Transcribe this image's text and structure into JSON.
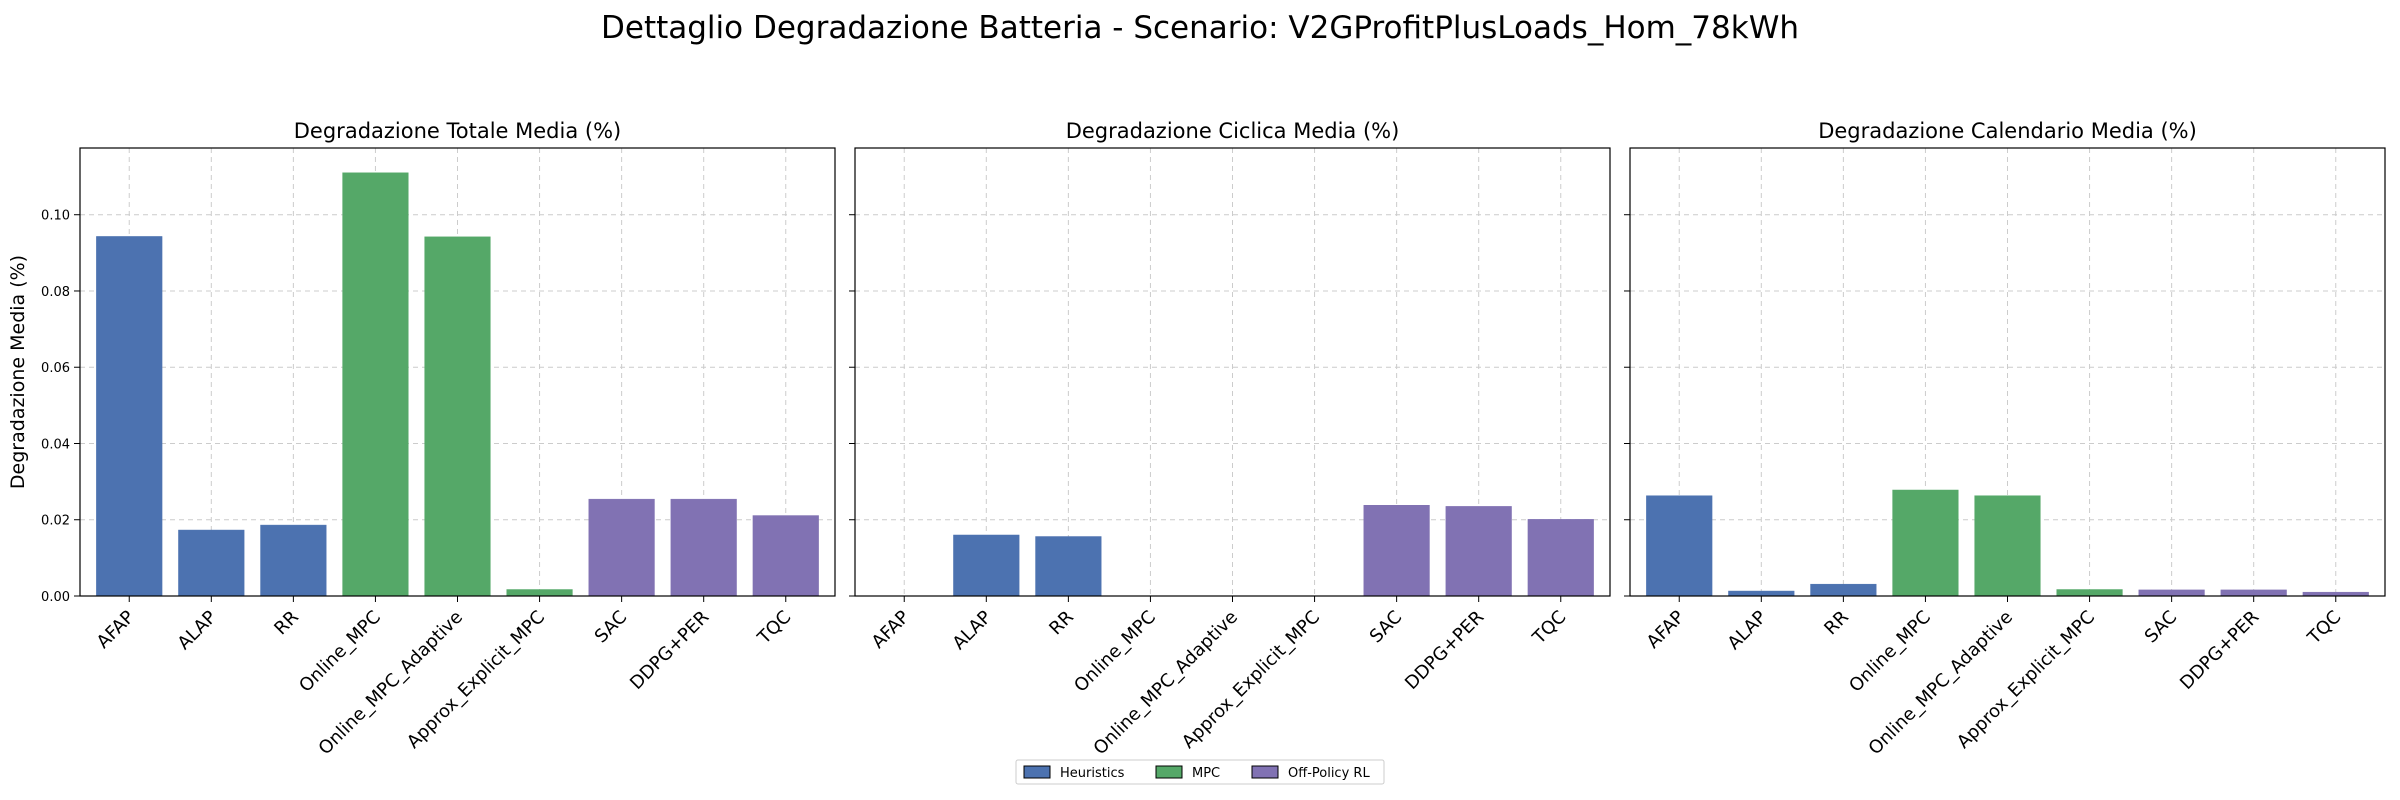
{
  "figure": {
    "title": "Dettaglio Degradazione Batteria - Scenario: V2GProfitPlusLoads_Hom_78kWh"
  },
  "colors": {
    "Heuristics": "#4c72b0",
    "MPC": "#55a868",
    "Off-Policy RL": "#8172b3"
  },
  "legend": {
    "placement": "lower-center",
    "entries": [
      "Heuristics",
      "MPC",
      "Off-Policy RL"
    ]
  },
  "chart_data": [
    {
      "type": "bar",
      "title": "Degradazione Totale Media (%)",
      "ylabel": "Degradazione Media (%)",
      "ylim": [
        0,
        0.1175
      ],
      "yticks": [
        "0.00",
        "0.02",
        "0.04",
        "0.06",
        "0.08",
        "0.10"
      ],
      "grid": true,
      "categories": [
        "AFAP",
        "ALAP",
        "RR",
        "Online_MPC",
        "Online_MPC_Adaptive",
        "Approx_Explicit_MPC",
        "SAC",
        "DDPG+PER",
        "TQC"
      ],
      "groups": [
        "Heuristics",
        "Heuristics",
        "Heuristics",
        "MPC",
        "MPC",
        "MPC",
        "Off-Policy RL",
        "Off-Policy RL",
        "Off-Policy RL"
      ],
      "values": [
        0.0943,
        0.0173,
        0.0186,
        0.111,
        0.0942,
        0.0017,
        0.0254,
        0.0254,
        0.0211
      ]
    },
    {
      "type": "bar",
      "title": "Degradazione Ciclica Media (%)",
      "ylabel": "",
      "ylim": [
        0,
        0.1175
      ],
      "yticks": [
        "0.00",
        "0.02",
        "0.04",
        "0.06",
        "0.08",
        "0.10"
      ],
      "grid": true,
      "categories": [
        "AFAP",
        "ALAP",
        "RR",
        "Online_MPC",
        "Online_MPC_Adaptive",
        "Approx_Explicit_MPC",
        "SAC",
        "DDPG+PER",
        "TQC"
      ],
      "groups": [
        "Heuristics",
        "Heuristics",
        "Heuristics",
        "MPC",
        "MPC",
        "MPC",
        "Off-Policy RL",
        "Off-Policy RL",
        "Off-Policy RL"
      ],
      "values": [
        0.0,
        0.016,
        0.0156,
        0.0,
        0.0,
        0.0,
        0.0238,
        0.0235,
        0.0201
      ]
    },
    {
      "type": "bar",
      "title": "Degradazione Calendario Media (%)",
      "ylabel": "",
      "ylim": [
        0,
        0.1175
      ],
      "yticks": [
        "0.00",
        "0.02",
        "0.04",
        "0.06",
        "0.08",
        "0.10"
      ],
      "grid": true,
      "categories": [
        "AFAP",
        "ALAP",
        "RR",
        "Online_MPC",
        "Online_MPC_Adaptive",
        "Approx_Explicit_MPC",
        "SAC",
        "DDPG+PER",
        "TQC"
      ],
      "groups": [
        "Heuristics",
        "Heuristics",
        "Heuristics",
        "MPC",
        "MPC",
        "MPC",
        "Off-Policy RL",
        "Off-Policy RL",
        "Off-Policy RL"
      ],
      "values": [
        0.0263,
        0.0013,
        0.0031,
        0.0278,
        0.0263,
        0.0017,
        0.0016,
        0.0016,
        0.001
      ]
    }
  ]
}
